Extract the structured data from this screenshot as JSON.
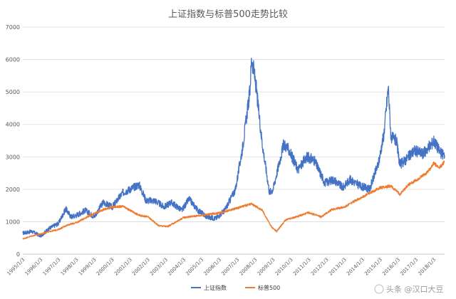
{
  "chart_data": {
    "type": "line",
    "title": "上证指数与标普500走势比较",
    "xlabel": "",
    "ylabel": "",
    "ylim": [
      0,
      7000
    ],
    "yticks": [
      0,
      1000,
      2000,
      3000,
      4000,
      5000,
      6000,
      7000
    ],
    "xtick_labels": [
      "1995/1/3",
      "1996/1/3",
      "1997/1/3",
      "1998/1/3",
      "1999/1/3",
      "2000/1/3",
      "2001/1/3",
      "2002/1/3",
      "2003/1/3",
      "2004/1/3",
      "2005/1/3",
      "2006/1/3",
      "2007/1/3",
      "2008/1/3",
      "2009/1/3",
      "2010/1/3",
      "2011/1/3",
      "2012/1/3",
      "2013/1/3",
      "2014/1/3",
      "2015/1/3",
      "2016/1/3",
      "2017/1/3",
      "2018/1/3"
    ],
    "grid": true,
    "legend_position": "bottom",
    "series": [
      {
        "name": "上证指数",
        "color": "#4472c4",
        "points": [
          [
            1995.0,
            650
          ],
          [
            1995.5,
            700
          ],
          [
            1996.0,
            560
          ],
          [
            1996.5,
            800
          ],
          [
            1997.0,
            950
          ],
          [
            1997.4,
            1400
          ],
          [
            1997.7,
            1150
          ],
          [
            1998.0,
            1200
          ],
          [
            1998.5,
            1350
          ],
          [
            1999.0,
            1150
          ],
          [
            1999.5,
            1600
          ],
          [
            2000.0,
            1450
          ],
          [
            2000.6,
            1900
          ],
          [
            2001.0,
            2000
          ],
          [
            2001.5,
            2150
          ],
          [
            2001.9,
            1650
          ],
          [
            2002.4,
            1650
          ],
          [
            2002.9,
            1450
          ],
          [
            2003.3,
            1600
          ],
          [
            2003.9,
            1350
          ],
          [
            2004.3,
            1700
          ],
          [
            2004.8,
            1350
          ],
          [
            2005.3,
            1150
          ],
          [
            2005.8,
            1100
          ],
          [
            2006.3,
            1350
          ],
          [
            2006.9,
            2000
          ],
          [
            2007.3,
            3300
          ],
          [
            2007.7,
            5000
          ],
          [
            2007.8,
            6050
          ],
          [
            2008.0,
            5400
          ],
          [
            2008.4,
            3400
          ],
          [
            2008.8,
            1900
          ],
          [
            2009.0,
            2000
          ],
          [
            2009.6,
            3400
          ],
          [
            2009.9,
            3200
          ],
          [
            2010.4,
            2600
          ],
          [
            2010.9,
            3000
          ],
          [
            2011.3,
            2900
          ],
          [
            2011.9,
            2200
          ],
          [
            2012.4,
            2300
          ],
          [
            2012.9,
            2050
          ],
          [
            2013.3,
            2300
          ],
          [
            2013.9,
            2100
          ],
          [
            2014.4,
            2000
          ],
          [
            2014.9,
            2800
          ],
          [
            2015.2,
            3700
          ],
          [
            2015.45,
            5150
          ],
          [
            2015.6,
            3600
          ],
          [
            2015.9,
            3500
          ],
          [
            2016.1,
            2750
          ],
          [
            2016.5,
            2950
          ],
          [
            2016.9,
            3200
          ],
          [
            2017.4,
            3100
          ],
          [
            2017.8,
            3350
          ],
          [
            2018.0,
            3500
          ],
          [
            2018.4,
            3100
          ],
          [
            2018.6,
            3050
          ]
        ]
      },
      {
        "name": "标普500",
        "color": "#ed7d31",
        "points": [
          [
            1995.0,
            470
          ],
          [
            1995.5,
            560
          ],
          [
            1996.0,
            620
          ],
          [
            1996.5,
            700
          ],
          [
            1997.0,
            760
          ],
          [
            1997.5,
            900
          ],
          [
            1998.0,
            970
          ],
          [
            1998.6,
            1150
          ],
          [
            1999.0,
            1250
          ],
          [
            1999.5,
            1370
          ],
          [
            2000.0,
            1450
          ],
          [
            2000.6,
            1470
          ],
          [
            2001.0,
            1350
          ],
          [
            2001.5,
            1200
          ],
          [
            2002.0,
            1150
          ],
          [
            2002.6,
            880
          ],
          [
            2003.1,
            850
          ],
          [
            2003.6,
            1000
          ],
          [
            2004.0,
            1130
          ],
          [
            2005.0,
            1200
          ],
          [
            2006.0,
            1270
          ],
          [
            2007.0,
            1420
          ],
          [
            2007.8,
            1550
          ],
          [
            2008.4,
            1350
          ],
          [
            2008.9,
            850
          ],
          [
            2009.2,
            700
          ],
          [
            2009.7,
            1050
          ],
          [
            2010.3,
            1150
          ],
          [
            2011.0,
            1280
          ],
          [
            2011.7,
            1150
          ],
          [
            2012.3,
            1380
          ],
          [
            2013.0,
            1450
          ],
          [
            2013.6,
            1650
          ],
          [
            2014.3,
            1850
          ],
          [
            2015.0,
            2050
          ],
          [
            2015.6,
            2100
          ],
          [
            2016.1,
            1850
          ],
          [
            2016.6,
            2150
          ],
          [
            2017.0,
            2270
          ],
          [
            2017.6,
            2500
          ],
          [
            2018.0,
            2800
          ],
          [
            2018.3,
            2650
          ],
          [
            2018.6,
            2850
          ]
        ]
      }
    ]
  },
  "footer": {
    "watermark": "头条 @汉口大豆"
  }
}
